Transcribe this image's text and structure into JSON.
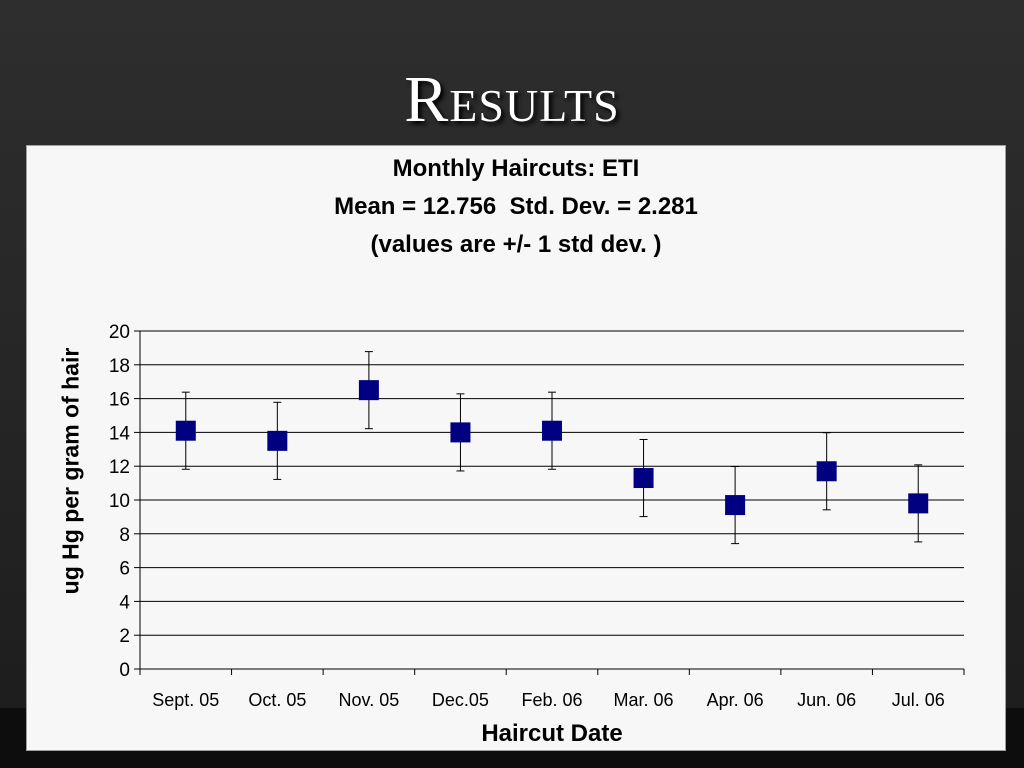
{
  "slide": {
    "title": "Results"
  },
  "colors": {
    "marker": "#000080",
    "grid": "#000000",
    "panel": "#f7f7f7"
  },
  "chart_data": {
    "type": "scatter",
    "title": [
      "Monthly Haircuts: ETI",
      "Mean = 12.756  Std. Dev. = 2.281",
      "(values are +/- 1 std dev. )"
    ],
    "xlabel": "Haircut Date",
    "ylabel": "ug Hg per gram of hair",
    "categories": [
      "Sept. 05",
      "Oct. 05",
      "Nov. 05",
      "Dec.05",
      "Feb. 06",
      "Mar. 06",
      "Apr. 06",
      "Jun. 06",
      "Jul. 06"
    ],
    "values": [
      14.1,
      13.5,
      16.5,
      14.0,
      14.1,
      11.3,
      9.7,
      11.7,
      9.8
    ],
    "error": 2.281,
    "ylim": [
      0,
      20
    ],
    "yticks": [
      0,
      2,
      4,
      6,
      8,
      10,
      12,
      14,
      16,
      18,
      20
    ],
    "grid": true,
    "legend": "none"
  }
}
